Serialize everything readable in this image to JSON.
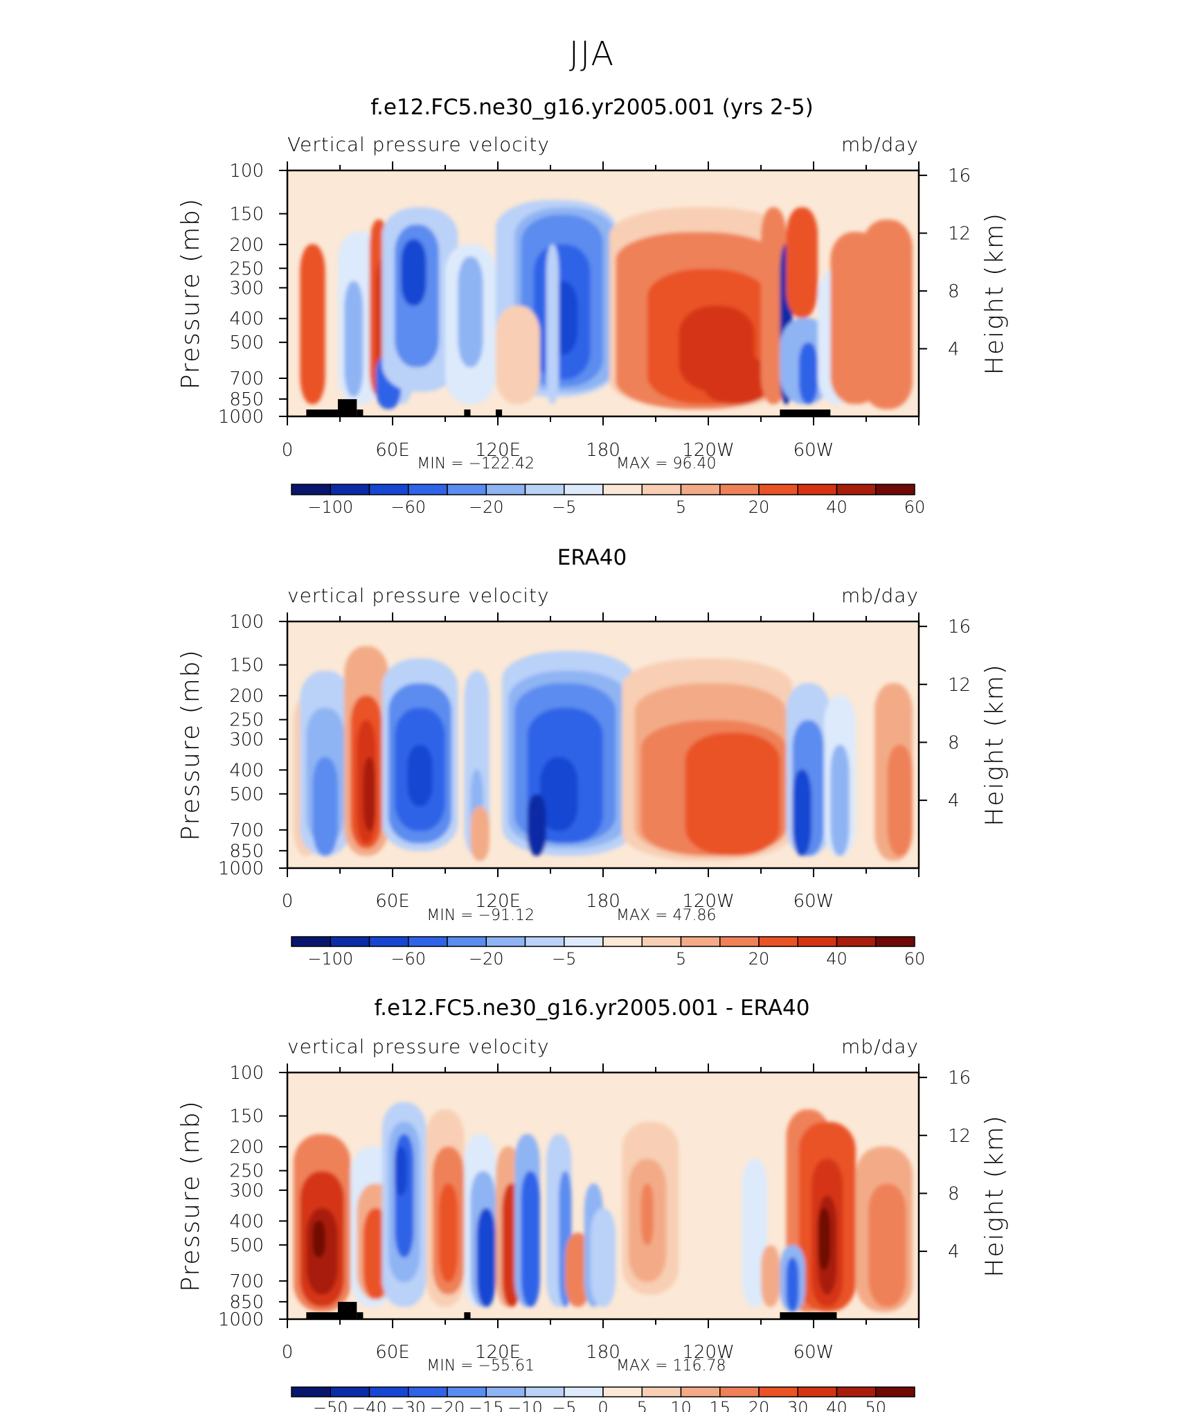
{
  "figure": {
    "title": "JJA"
  },
  "colors": {
    "palette_12": [
      "#08166e",
      "#0b2ca6",
      "#1746d2",
      "#2f64e8",
      "#5b8cef",
      "#8fb4f3",
      "#bad1f8",
      "#ddeafb",
      "#fbe8d6",
      "#f8cfb4",
      "#f3ab87",
      "#ef8158",
      "#ea5325",
      "#d53413",
      "#a81d0c",
      "#6f0a06"
    ],
    "land": "#000000",
    "frame": "#000000"
  },
  "chart_data": [
    {
      "type": "heatmap",
      "title": "f.e12.FC5.ne30_g16.yr2005.001 (yrs 2-5)",
      "left_string": "Vertical pressure velocity",
      "right_string": "mb/day",
      "ylabel": "Pressure (mb)",
      "y2label": "Height (km)",
      "x_ticks": [
        "0",
        "60E",
        "120E",
        "180",
        "120W",
        "60W"
      ],
      "y_ticks": [
        "100",
        "150",
        "200",
        "250",
        "300",
        "400",
        "500",
        "700",
        "850",
        "1000"
      ],
      "y2_ticks": [
        "16",
        "12",
        "8",
        "4"
      ],
      "min_label": "MIN = −122.42",
      "max_label": "MAX = 96.40",
      "min": -122.42,
      "max": 96.4,
      "colorbar_levels": [
        -120,
        -100,
        -80,
        -60,
        -40,
        -20,
        -10,
        -5,
        0,
        5,
        10,
        20,
        30,
        40,
        50,
        60
      ],
      "colorbar_labels": [
        "−100",
        "−60",
        "−20",
        "−5",
        "5",
        "20",
        "40",
        "60"
      ],
      "grid": false
    },
    {
      "type": "heatmap",
      "title": "ERA40",
      "left_string": "vertical pressure velocity",
      "right_string": "mb/day",
      "ylabel": "Pressure (mb)",
      "y2label": "Height (km)",
      "x_ticks": [
        "0",
        "60E",
        "120E",
        "180",
        "120W",
        "60W"
      ],
      "y_ticks": [
        "100",
        "150",
        "200",
        "250",
        "300",
        "400",
        "500",
        "700",
        "850",
        "1000"
      ],
      "y2_ticks": [
        "16",
        "12",
        "8",
        "4"
      ],
      "min_label": "MIN = −91.12",
      "max_label": "MAX = 47.86",
      "min": -91.12,
      "max": 47.86,
      "colorbar_levels": [
        -120,
        -100,
        -80,
        -60,
        -40,
        -20,
        -10,
        -5,
        0,
        5,
        10,
        20,
        30,
        40,
        50,
        60
      ],
      "colorbar_labels": [
        "−100",
        "−60",
        "−20",
        "−5",
        "5",
        "20",
        "40",
        "60"
      ],
      "grid": false
    },
    {
      "type": "heatmap",
      "title": "f.e12.FC5.ne30_g16.yr2005.001 - ERA40",
      "left_string": "vertical pressure velocity",
      "right_string": "mb/day",
      "ylabel": "Pressure (mb)",
      "y2label": "Height (km)",
      "x_ticks": [
        "0",
        "60E",
        "120E",
        "180",
        "120W",
        "60W"
      ],
      "y_ticks": [
        "100",
        "150",
        "200",
        "250",
        "300",
        "400",
        "500",
        "700",
        "850",
        "1000"
      ],
      "y2_ticks": [
        "16",
        "12",
        "8",
        "4"
      ],
      "min_label": "MIN = −55.61",
      "max_label": "MAX = 116.78",
      "min": -55.61,
      "max": 116.78,
      "colorbar_levels": [
        -60,
        -50,
        -40,
        -30,
        -20,
        -15,
        -10,
        -5,
        0,
        5,
        10,
        15,
        20,
        30,
        40,
        50
      ],
      "colorbar_labels": [
        "−50",
        "−40",
        "−30",
        "−20",
        "−15",
        "−10",
        "−5",
        "0",
        "5",
        "10",
        "15",
        "20",
        "30",
        "40",
        "50"
      ],
      "grid": false
    }
  ]
}
